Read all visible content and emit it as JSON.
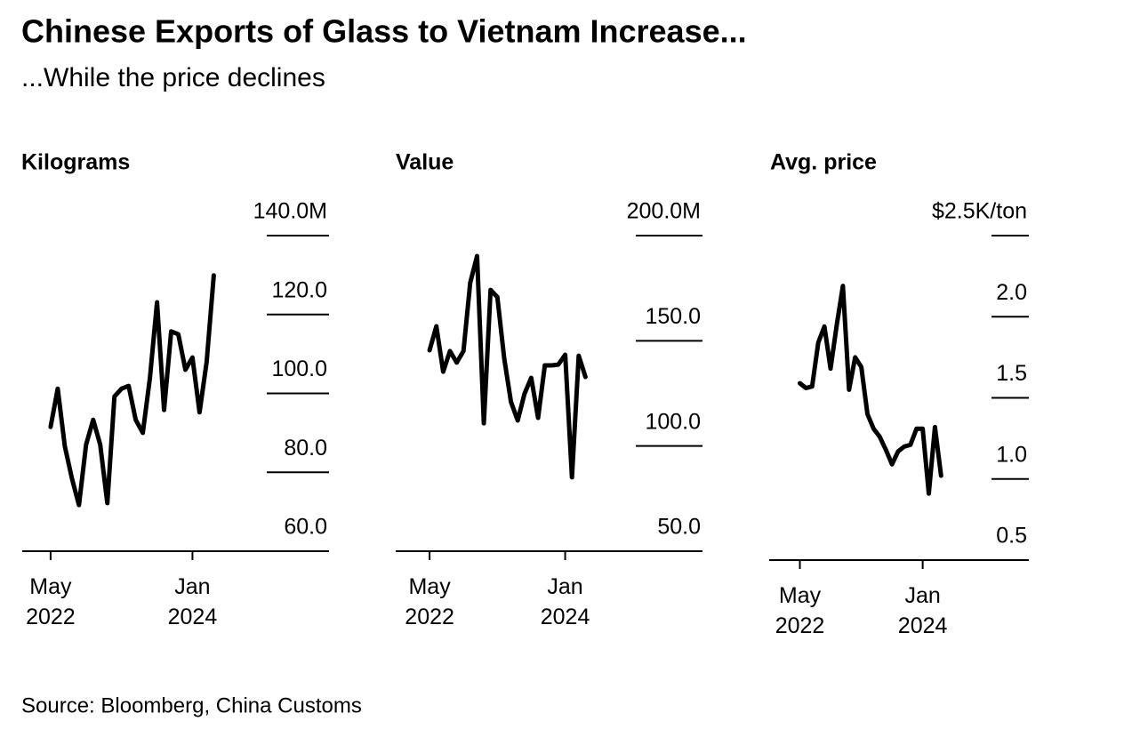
{
  "title": "Chinese Exports of Glass to Vietnam Increase...",
  "subtitle": "...While the price declines",
  "source": "Source: Bloomberg, China Customs",
  "chart_data": [
    {
      "type": "line",
      "title": "Kilograms",
      "color": "#000000",
      "x": [
        "2022-05",
        "2022-06",
        "2022-07",
        "2022-08",
        "2022-09",
        "2022-10",
        "2022-11",
        "2022-12",
        "2023-01",
        "2023-02",
        "2023-03",
        "2023-04",
        "2023-05",
        "2023-06",
        "2023-07",
        "2023-08",
        "2023-09",
        "2023-10",
        "2023-11",
        "2023-12",
        "2024-01",
        "2024-02",
        "2024-03",
        "2024-04"
      ],
      "values": [
        91.5,
        101.2,
        86.6,
        78.5,
        71.7,
        87.0,
        93.3,
        87.0,
        72.2,
        99.2,
        101.2,
        101.9,
        93.3,
        90.0,
        103.9,
        123.1,
        95.8,
        115.7,
        115.0,
        106.0,
        109.1,
        95.2,
        108.0,
        129.9
      ],
      "xlim": [
        "2022-01",
        "2025-08"
      ],
      "xticks": [
        {
          "value": "2022-05",
          "label": "May 2022"
        },
        {
          "value": "2024-01",
          "label": "Jan 2024"
        }
      ],
      "ylim": [
        60,
        140
      ],
      "yticks": [
        {
          "value": 60,
          "label": "60.0"
        },
        {
          "value": 80,
          "label": "80.0"
        },
        {
          "value": 100,
          "label": "100.0"
        },
        {
          "value": 120,
          "label": "120.0"
        },
        {
          "value": 140,
          "label": "140.0M"
        }
      ]
    },
    {
      "type": "line",
      "title": "Value",
      "color": "#000000",
      "x": [
        "2022-05",
        "2022-06",
        "2022-07",
        "2022-08",
        "2022-09",
        "2022-10",
        "2022-11",
        "2022-12",
        "2023-01",
        "2023-02",
        "2023-03",
        "2023-04",
        "2023-05",
        "2023-06",
        "2023-07",
        "2023-08",
        "2023-09",
        "2023-10",
        "2023-11",
        "2023-12",
        "2024-01",
        "2024-02",
        "2024-03",
        "2024-04"
      ],
      "values": [
        145.5,
        156.9,
        135.3,
        145.1,
        139.6,
        145.1,
        177.6,
        190.3,
        110.8,
        174.2,
        170.8,
        141.7,
        121.0,
        112.1,
        124.8,
        132.4,
        113.4,
        138.3,
        138.3,
        138.7,
        143.4,
        85.1,
        142.9,
        132.8
      ],
      "xlim": [
        "2021-12",
        "2025-09"
      ],
      "xticks": [
        {
          "value": "2022-05",
          "label": "May 2022"
        },
        {
          "value": "2024-01",
          "label": "Jan 2024"
        }
      ],
      "ylim": [
        50,
        200
      ],
      "yticks": [
        {
          "value": 50,
          "label": "50.0"
        },
        {
          "value": 100,
          "label": "100.0"
        },
        {
          "value": 150,
          "label": "150.0"
        },
        {
          "value": 200,
          "label": "200.0M"
        }
      ]
    },
    {
      "type": "line",
      "title": "Avg. price",
      "color": "#000000",
      "x": [
        "2022-05",
        "2022-06",
        "2022-07",
        "2022-08",
        "2022-09",
        "2022-10",
        "2022-11",
        "2022-12",
        "2023-01",
        "2023-02",
        "2023-03",
        "2023-04",
        "2023-05",
        "2023-06",
        "2023-07",
        "2023-08",
        "2023-09",
        "2023-10",
        "2023-11",
        "2023-12",
        "2024-01",
        "2024-02",
        "2024-03",
        "2024-04"
      ],
      "values": [
        1.59,
        1.56,
        1.57,
        1.84,
        1.94,
        1.68,
        1.95,
        2.19,
        1.55,
        1.75,
        1.69,
        1.4,
        1.31,
        1.26,
        1.18,
        1.09,
        1.17,
        1.2,
        1.21,
        1.31,
        1.31,
        0.91,
        1.32,
        1.02
      ],
      "xlim": [
        "2021-12",
        "2025-06"
      ],
      "xticks": [
        {
          "value": "2022-05",
          "label": "May 2022"
        },
        {
          "value": "2024-01",
          "label": "Jan 2024"
        }
      ],
      "ylim": [
        0.5,
        2.5
      ],
      "yticks": [
        {
          "value": 0.5,
          "label": "0.5"
        },
        {
          "value": 1.0,
          "label": "1.0"
        },
        {
          "value": 1.5,
          "label": "1.5"
        },
        {
          "value": 2.0,
          "label": "2.0"
        },
        {
          "value": 2.5,
          "label": "$2.5K/ton"
        }
      ]
    }
  ]
}
